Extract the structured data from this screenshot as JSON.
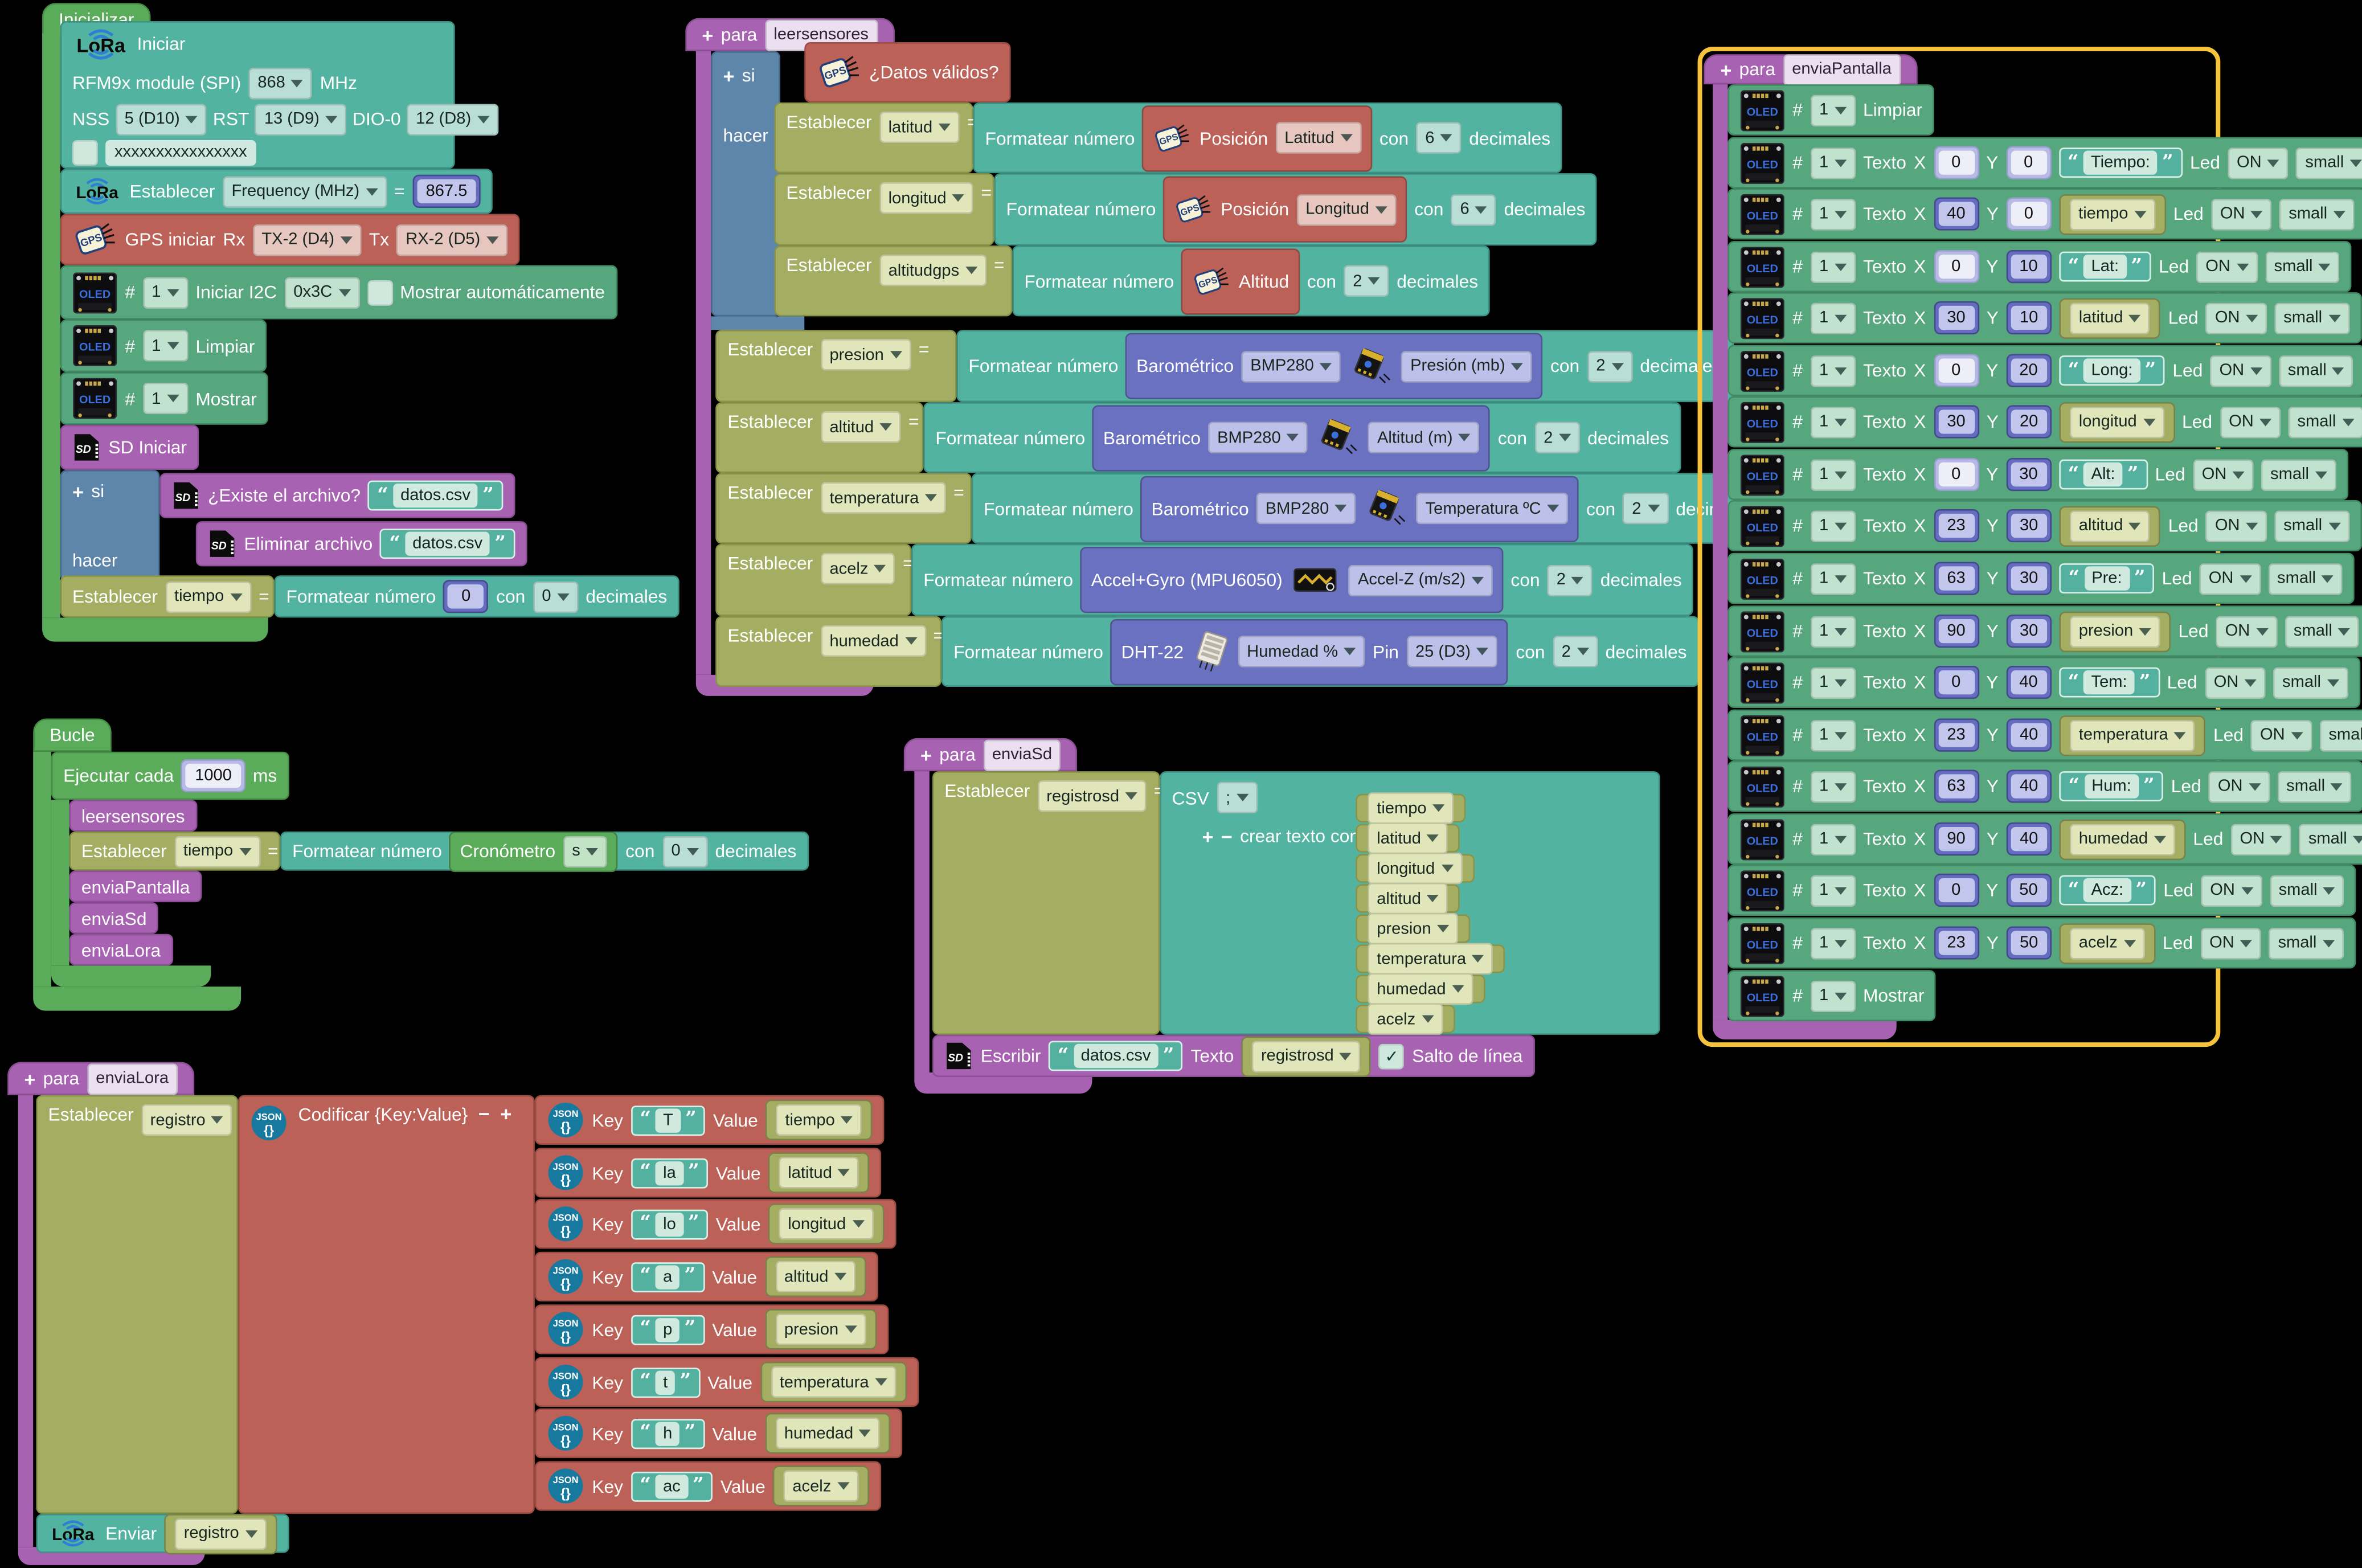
{
  "colors": {
    "bg": "#000000",
    "green": "#5aab5a",
    "green_b": "#478f47",
    "teal": "#53b3a1",
    "teal_b": "#3e9283",
    "oled": "#56a67e",
    "oled_b": "#428a64",
    "salmon": "#bc6157",
    "salmon_b": "#9c4c42",
    "indigo": "#6a71c0",
    "indigo_b": "#5157a3",
    "blue": "#5e86ab",
    "blue_b": "#4a6d8e",
    "olive": "#a4ae62",
    "olive_b": "#8a9448",
    "purple": "#a763b1",
    "purple_b": "#8d4f96",
    "yellow": "#f8c33c",
    "numr": "#666cc0",
    "numr_f": "#c3c6ec",
    "nums": "#b7bae4",
    "nums_f": "#edeef8"
  },
  "inicializar": {
    "hat": "Inicializar",
    "lora_init": {
      "logo": "LoRa",
      "title": "Iniciar",
      "module": "RFM9x module (SPI)",
      "freq": "868",
      "unit": "MHz",
      "nss": "NSS",
      "nss_v": "5 (D10)",
      "rst": "RST",
      "rst_v": "13 (D9)",
      "dio": "DIO-0",
      "dio_v": "12 (D8)",
      "key": "xxxxxxxxxxxxxxxx"
    },
    "lora_set": {
      "label": "Establecer",
      "field": "Frequency (MHz)",
      "eq": "=",
      "value": "867.5"
    },
    "gps_init": {
      "label": "GPS iniciar",
      "rx": "Rx",
      "rx_v": "TX-2 (D4)",
      "tx": "Tx",
      "tx_v": "RX-2 (D5)"
    },
    "oled_init": {
      "hash": "#",
      "n": "1",
      "label": "Iniciar I2C",
      "addr": "0x3C",
      "auto": "Mostrar automáticamente"
    },
    "oled_clear": {
      "hash": "#",
      "n": "1",
      "label": "Limpiar"
    },
    "oled_show": {
      "hash": "#",
      "n": "1",
      "label": "Mostrar"
    },
    "sd_init": "SD Iniciar",
    "if": {
      "plus": "+",
      "si": "si",
      "hacer": "hacer",
      "cond": {
        "label": "¿Existe el archivo?",
        "file": "datos.csv"
      },
      "then": {
        "label": "Eliminar archivo",
        "file": "datos.csv"
      }
    },
    "set_tiempo": {
      "label": "Establecer",
      "var": "tiempo",
      "eq": "=",
      "fmt": "Formatear número",
      "value": "0",
      "con": "con",
      "dec": "0",
      "decimales": "decimales"
    }
  },
  "bucle": {
    "hat": "Bucle",
    "every": {
      "label": "Ejecutar cada",
      "ms_v": "1000",
      "ms": "ms"
    },
    "calls": [
      "leersensores"
    ],
    "set_tiempo": {
      "label": "Establecer",
      "var": "tiempo",
      "eq": "=",
      "fmt": "Formatear número",
      "crono": "Cronómetro",
      "crono_unit": "s",
      "con": "con",
      "dec": "0",
      "decimales": "decimales"
    },
    "calls2": [
      "enviaPantalla",
      "enviaSd",
      "enviaLora"
    ]
  },
  "leersensores": {
    "hat": {
      "plus": "+",
      "para": "para",
      "name": "leersensores"
    },
    "if": {
      "plus": "+",
      "si": "si",
      "hacer": "hacer",
      "cond": "¿Datos válidos?"
    },
    "shared": {
      "set": "Establecer",
      "eq": "=",
      "fmt": "Formatear número",
      "con": "con",
      "decimales": "decimales",
      "pin": "Pin"
    },
    "gps_rows": [
      {
        "var": "latitud",
        "kind": "gps-pos",
        "label": "Posición",
        "dd": "Latitud",
        "dec": "6"
      },
      {
        "var": "longitud",
        "kind": "gps-pos",
        "label": "Posición",
        "dd": "Longitud",
        "dec": "6"
      },
      {
        "var": "altitudgps",
        "kind": "gps-alt",
        "label": "Altitud",
        "dec": "2"
      }
    ],
    "sensor_rows": [
      {
        "var": "presion",
        "kind": "bmp",
        "label": "Barométrico",
        "dd1": "BMP280",
        "dd2": "Presión (mb)",
        "dec": "2"
      },
      {
        "var": "altitud",
        "kind": "bmp",
        "label": "Barométrico",
        "dd1": "BMP280",
        "dd2": "Altitud (m)",
        "dec": "2"
      },
      {
        "var": "temperatura",
        "kind": "bmp",
        "label": "Barométrico",
        "dd1": "BMP280",
        "dd2": "Temperatura ºC",
        "dec": "2"
      },
      {
        "var": "acelz",
        "kind": "mpu",
        "label": "Accel+Gyro (MPU6050)",
        "dd2": "Accel-Z (m/s2)",
        "dec": "2"
      },
      {
        "var": "humedad",
        "kind": "dht",
        "label": "DHT-22",
        "dd2": "Humedad %",
        "pin_v": "25 (D3)",
        "dec": "2"
      }
    ]
  },
  "enviaSd": {
    "hat": {
      "plus": "+",
      "para": "para",
      "name": "enviaSd"
    },
    "set": {
      "label": "Establecer",
      "var": "registrosd",
      "eq": "="
    },
    "csv": {
      "label": "CSV",
      "sep": ";",
      "plus": "+",
      "minus": "−",
      "create": "crear texto con",
      "items": [
        "tiempo",
        "latitud",
        "longitud",
        "altitud",
        "presion",
        "temperatura",
        "humedad",
        "acelz"
      ]
    },
    "write": {
      "label": "Escribir",
      "file": "datos.csv",
      "texto": "Texto",
      "var": "registrosd",
      "newline": "Salto de línea"
    }
  },
  "enviaPantalla": {
    "hat": {
      "plus": "+",
      "para": "para",
      "name": "enviaPantalla"
    },
    "clear": {
      "hash": "#",
      "n": "1",
      "label": "Limpiar"
    },
    "show": {
      "hash": "#",
      "n": "1",
      "label": "Mostrar"
    },
    "labels": {
      "texto": "Texto",
      "x": "X",
      "y": "Y",
      "led": "Led",
      "on": "ON",
      "size": "small"
    },
    "rows": [
      {
        "x": "0",
        "xs": true,
        "y": "0",
        "ys": true,
        "str": "Tiempo:"
      },
      {
        "x": "40",
        "y": "0",
        "ys": true,
        "var": "tiempo"
      },
      {
        "x": "0",
        "xs": true,
        "y": "10",
        "str": "Lat:"
      },
      {
        "x": "30",
        "y": "10",
        "var": "latitud"
      },
      {
        "x": "0",
        "xs": true,
        "y": "20",
        "str": "Long:"
      },
      {
        "x": "30",
        "y": "20",
        "var": "longitud"
      },
      {
        "x": "0",
        "xs": true,
        "y": "30",
        "str": "Alt:"
      },
      {
        "x": "23",
        "y": "30",
        "var": "altitud"
      },
      {
        "x": "63",
        "y": "30",
        "str": "Pre:"
      },
      {
        "x": "90",
        "y": "30",
        "var": "presion"
      },
      {
        "x": "0",
        "y": "40",
        "str": "Tem:"
      },
      {
        "x": "23",
        "y": "40",
        "var": "temperatura"
      },
      {
        "x": "63",
        "y": "40",
        "str": "Hum:"
      },
      {
        "x": "90",
        "y": "40",
        "var": "humedad"
      },
      {
        "x": "0",
        "y": "50",
        "str": "Acz:"
      },
      {
        "x": "23",
        "y": "50",
        "var": "acelz"
      }
    ]
  },
  "enviaLora": {
    "hat": {
      "plus": "+",
      "para": "para",
      "name": "enviaLora"
    },
    "set": {
      "label": "Establecer",
      "var": "registro",
      "eq": "="
    },
    "codif": {
      "label": "Codificar {Key:Value}",
      "minus": "−",
      "plus": "+"
    },
    "key_label": "Key",
    "value_label": "Value",
    "pairs": [
      {
        "key": "T",
        "value": "tiempo"
      },
      {
        "key": "la",
        "value": "latitud"
      },
      {
        "key": "lo",
        "value": "longitud"
      },
      {
        "key": "a",
        "value": "altitud"
      },
      {
        "key": "p",
        "value": "presion"
      },
      {
        "key": "t",
        "value": "temperatura"
      },
      {
        "key": "h",
        "value": "humedad"
      },
      {
        "key": "ac",
        "value": "acelz"
      }
    ],
    "send": {
      "label": "Enviar",
      "var": "registro"
    }
  }
}
